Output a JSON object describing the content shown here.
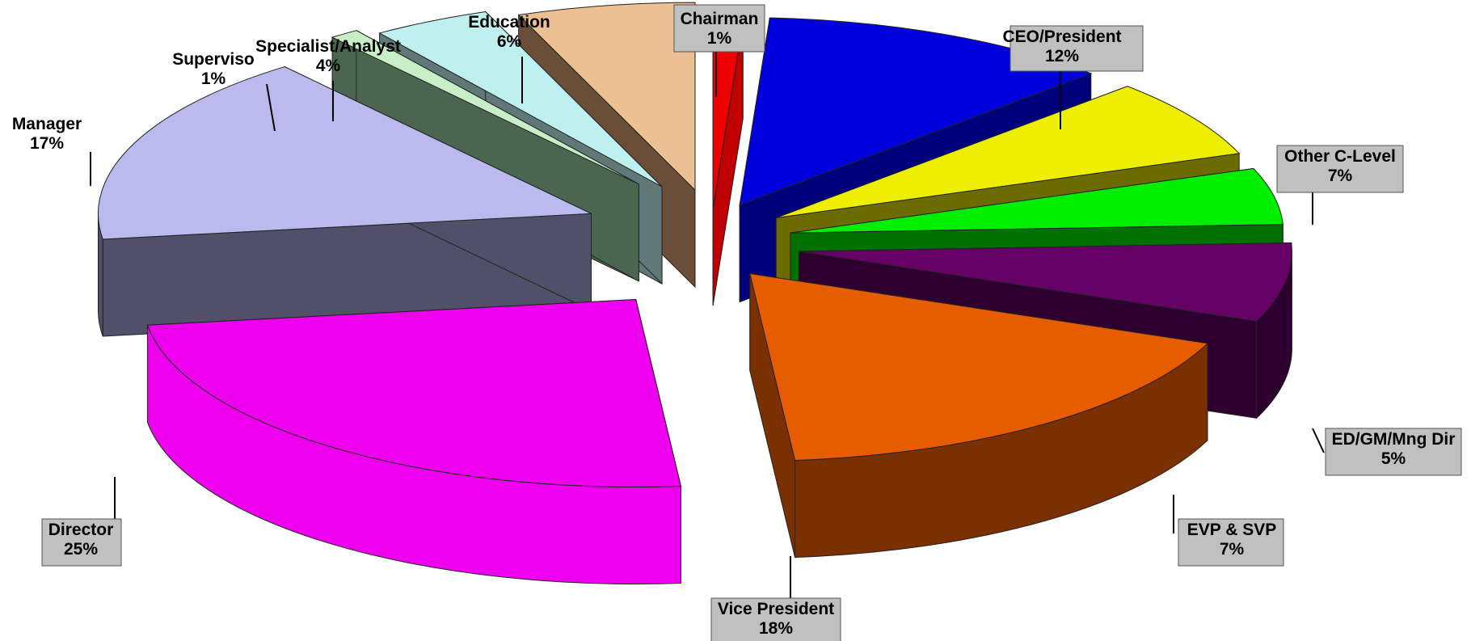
{
  "chart_data": {
    "type": "pie",
    "title": "",
    "categories": [
      "Chairman",
      "CEO/President",
      "Other C-Level",
      "ED/GM/Mng Dir",
      "EVP & SVP",
      "Vice President",
      "Director",
      "Manager",
      "Supervisor",
      "Specialist/Analyst",
      "Education"
    ],
    "values": [
      1,
      12,
      7,
      5,
      7,
      18,
      25,
      17,
      1,
      4,
      6
    ],
    "display_labels": [
      "1%",
      "12%",
      "7%",
      "5%",
      "7%",
      "18%",
      "25%",
      "17%",
      "1%",
      "4%",
      "6%"
    ],
    "clipped_label": "Superviso",
    "colors": [
      "#ee0000",
      "#0000dd",
      "#eeee00",
      "#00ee00",
      "#660066",
      "#e85c00",
      "#ee00ee",
      "#babaee",
      "#c8eec8",
      "#bff0f0",
      "#edc093"
    ],
    "side_colors": [
      "#c00000",
      "#00007a",
      "#6b6b00",
      "#007000",
      "#2e0030",
      "#7a3000",
      "#b000b0",
      "#50506a",
      "#4a6650",
      "#607878",
      "#6a4e38"
    ],
    "exploded": true,
    "style": "3d",
    "legend": "none",
    "boxed_labels": [
      true,
      true,
      true,
      true,
      true,
      true,
      true,
      false,
      false,
      false,
      false
    ]
  }
}
